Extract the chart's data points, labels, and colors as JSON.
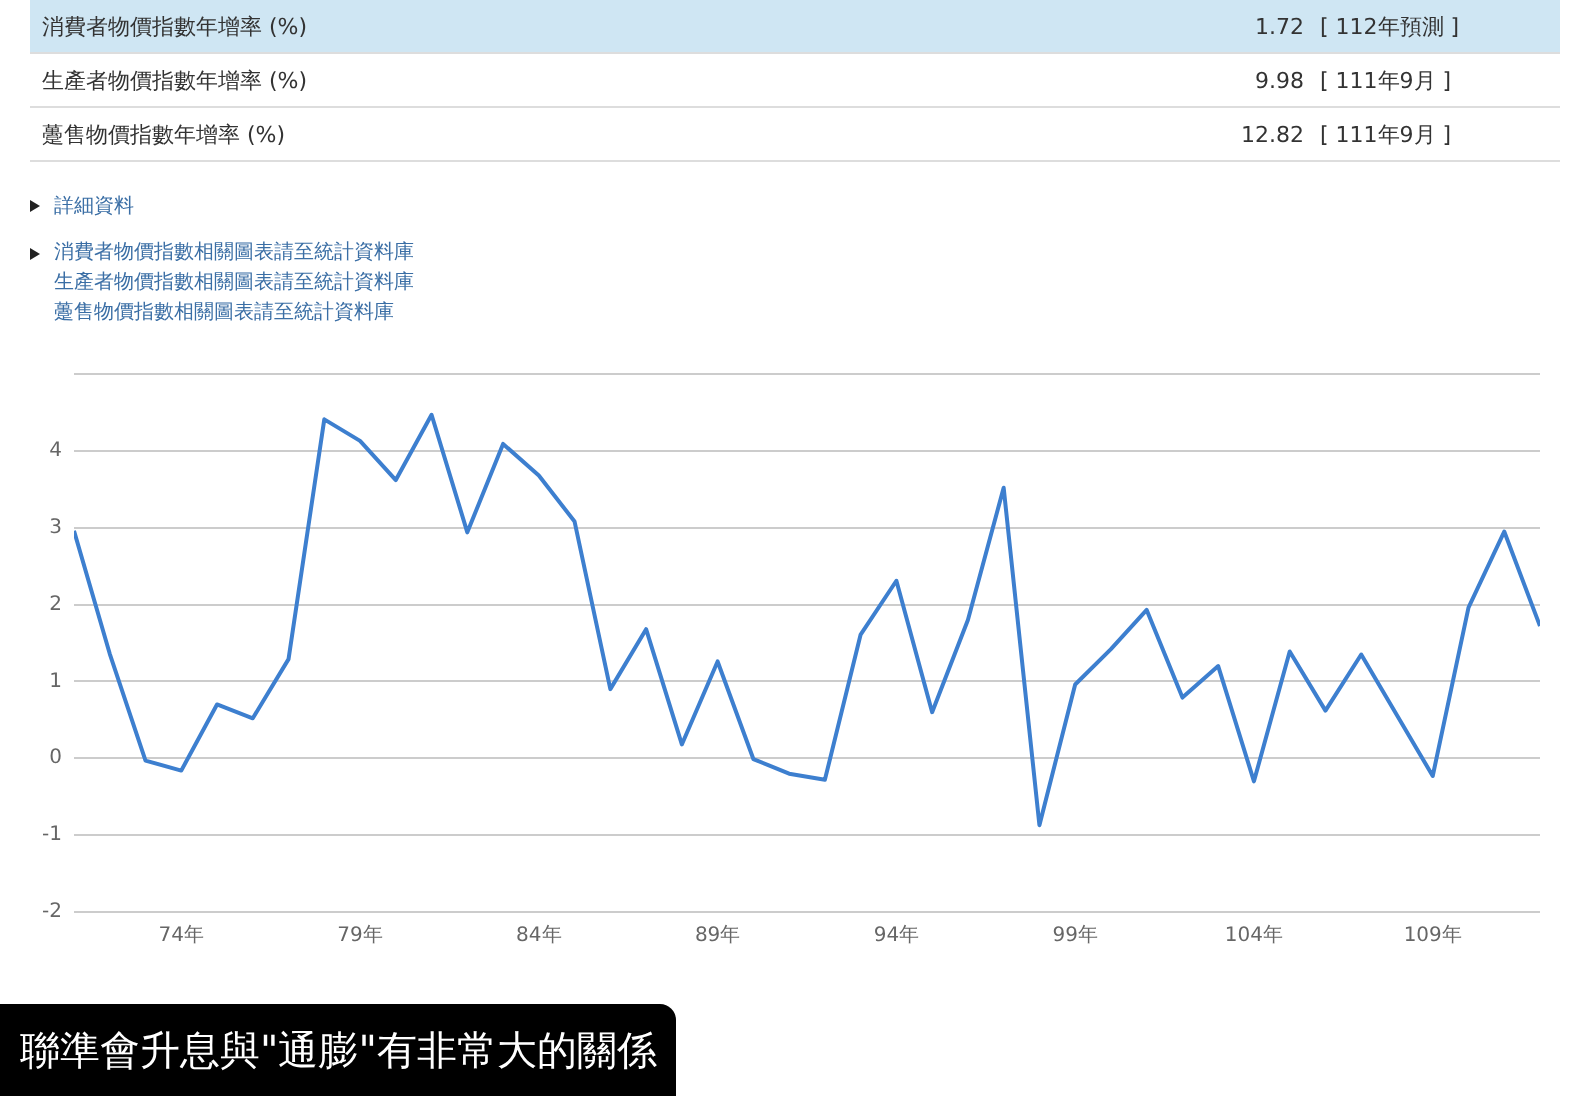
{
  "chart_data": {
    "type": "line",
    "x": [
      71,
      72,
      73,
      74,
      75,
      76,
      77,
      78,
      79,
      80,
      81,
      82,
      83,
      84,
      85,
      86,
      87,
      88,
      89,
      90,
      91,
      92,
      93,
      94,
      95,
      96,
      97,
      98,
      99,
      100,
      101,
      102,
      103,
      104,
      105,
      106,
      107,
      108,
      109,
      110,
      111,
      112
    ],
    "values": [
      2.96,
      1.36,
      -0.03,
      -0.16,
      0.7,
      0.52,
      1.29,
      4.41,
      4.13,
      3.62,
      4.47,
      2.94,
      4.09,
      3.68,
      3.08,
      0.9,
      1.68,
      0.18,
      1.26,
      -0.01,
      -0.2,
      -0.28,
      1.61,
      2.31,
      0.6,
      1.8,
      3.52,
      -0.87,
      0.96,
      1.42,
      1.93,
      0.79,
      1.2,
      -0.3,
      1.39,
      0.62,
      1.35,
      0.56,
      -0.23,
      1.96,
      2.95,
      1.72
    ],
    "color": "#3d7fcf",
    "xlim": [
      71,
      112
    ],
    "xticks": [
      {
        "value": 74,
        "label": "74年"
      },
      {
        "value": 79,
        "label": "79年"
      },
      {
        "value": 84,
        "label": "84年"
      },
      {
        "value": 89,
        "label": "89年"
      },
      {
        "value": 94,
        "label": "94年"
      },
      {
        "value": 99,
        "label": "99年"
      },
      {
        "value": 104,
        "label": "104年"
      },
      {
        "value": 109,
        "label": "109年"
      }
    ],
    "ylim": [
      -2,
      5
    ],
    "yticks": [
      -2,
      -1,
      0,
      1,
      2,
      3,
      4,
      {
        "value": 5,
        "label": null
      }
    ],
    "grid": "y",
    "marker": "none",
    "line_style": "solid",
    "annotations": [
      "消費者物價指數年增率 (%)",
      "1.72",
      "[ 112年預測 ]",
      "生產者物價指數年增率 (%)",
      "9.98",
      "[ 111年9月 ]",
      "躉售物價指數年增率 (%)",
      "12.82",
      "[ 111年9月 ]",
      "詳細資料",
      "消費者物價指數相關圖表請至統計資料庫",
      "生產者物價指數相關圖表請至統計資料庫",
      "躉售物價指數相關圖表請至統計資料庫",
      "聯準會升息與\"通膨\"有非常大的關係"
    ]
  }
}
